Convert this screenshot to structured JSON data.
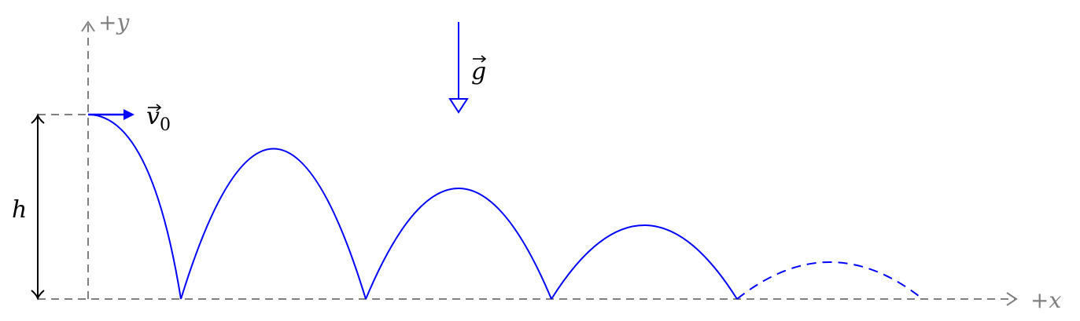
{
  "axes": {
    "x_label": "+x",
    "y_label": "+y"
  },
  "labels": {
    "height": "h",
    "gravity": "g",
    "velocity": "v",
    "velocity_subscript": "0"
  },
  "colors": {
    "trajectory": "#0000ff",
    "axis": "#808080",
    "dimension": "#000000",
    "background": "#ffffff"
  },
  "trajectory": {
    "bounce_count": 4,
    "restitution_ratio": 0.8,
    "final_arc_style": "dashed"
  }
}
